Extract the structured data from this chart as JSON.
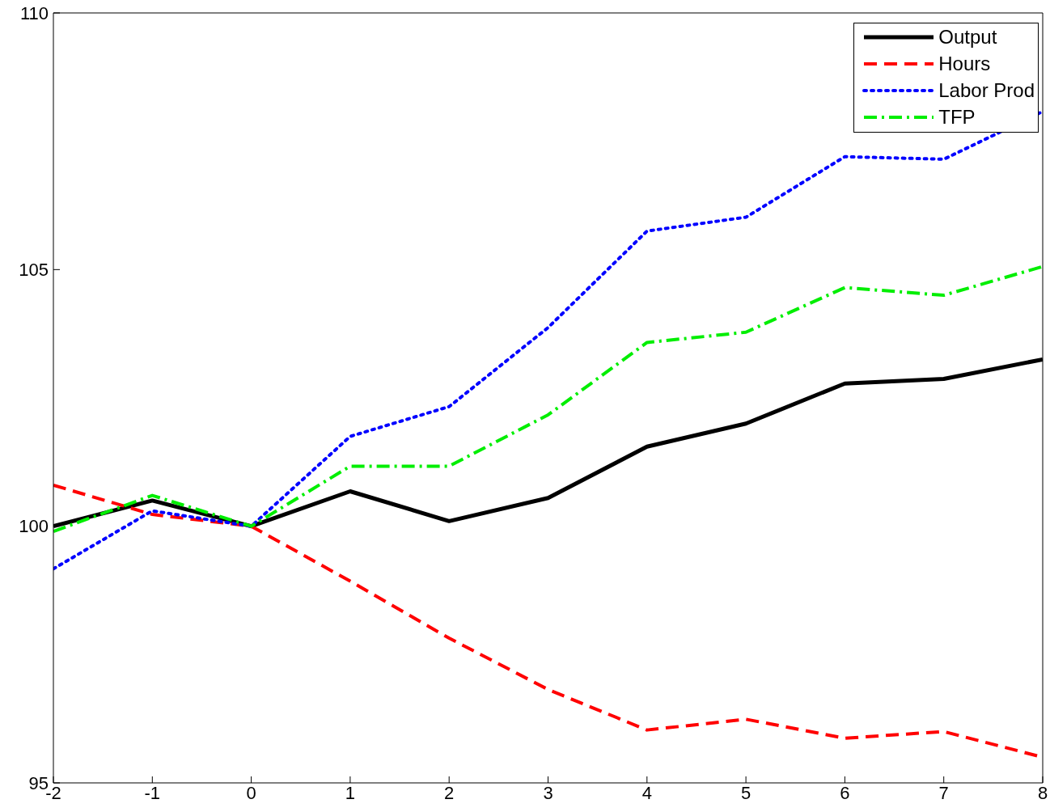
{
  "chart_data": {
    "type": "line",
    "x": [
      -2,
      -1,
      0,
      1,
      2,
      3,
      4,
      5,
      6,
      7,
      8
    ],
    "xlim": [
      -2,
      8
    ],
    "xticks": [
      -2,
      -1,
      0,
      1,
      2,
      3,
      4,
      5,
      6,
      7,
      8
    ],
    "ylim": [
      95,
      110
    ],
    "yticks": [
      95,
      100,
      105,
      110
    ],
    "legend": "top right",
    "marker": "none",
    "series": [
      {
        "name": "Output",
        "color": "#000000",
        "line_style": "solid",
        "values": [
          100.0,
          100.5,
          100.0,
          100.68,
          100.1,
          100.55,
          101.55,
          102.0,
          102.78,
          102.87,
          103.25
        ]
      },
      {
        "name": "Hours",
        "color": "#ff0000",
        "line_style": "dashed",
        "values": [
          100.8,
          100.23,
          100.0,
          98.93,
          97.82,
          96.82,
          96.03,
          96.24,
          95.87,
          96.0,
          95.5
        ]
      },
      {
        "name": "Labor Prod",
        "color": "#0000ff",
        "line_style": "dotted",
        "values": [
          99.17,
          100.3,
          100.0,
          101.75,
          102.33,
          103.87,
          105.75,
          106.02,
          107.2,
          107.15,
          108.08
        ]
      },
      {
        "name": "TFP",
        "color": "#00ee00",
        "line_style": "dashdot",
        "values": [
          99.9,
          100.6,
          100.0,
          101.17,
          101.17,
          102.17,
          103.58,
          103.78,
          104.65,
          104.5,
          105.06
        ]
      }
    ]
  }
}
